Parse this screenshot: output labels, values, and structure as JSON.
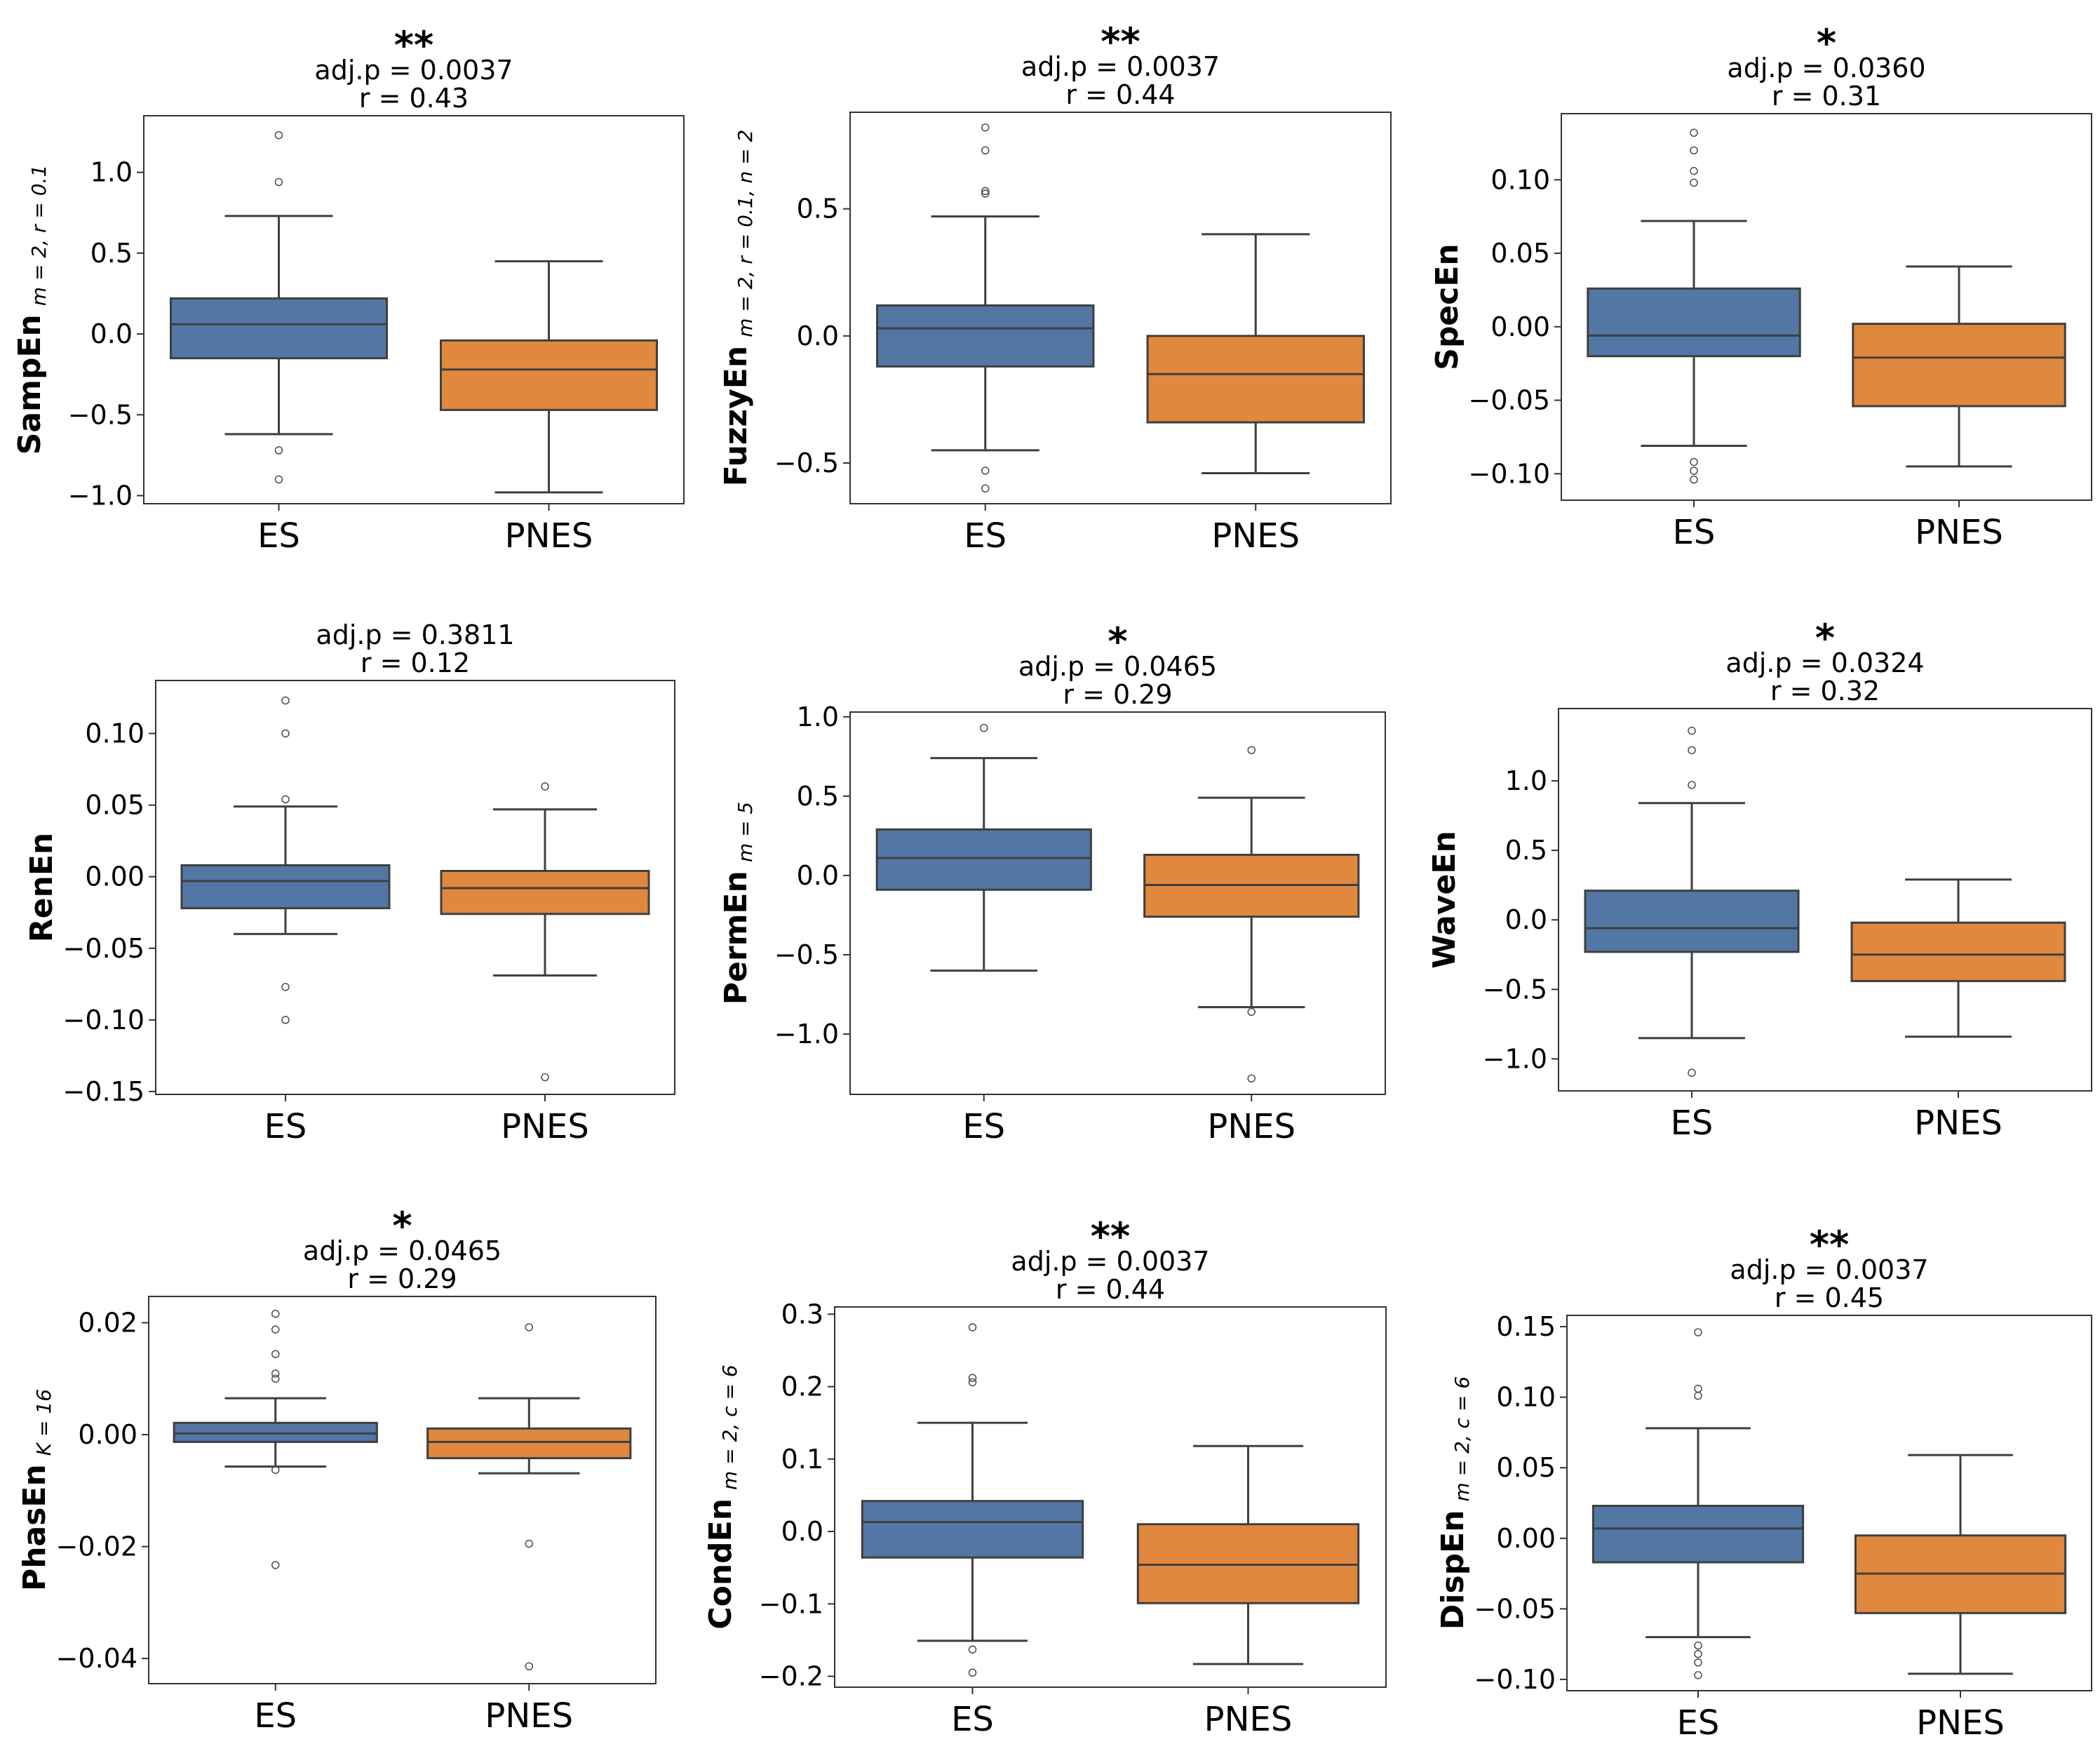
{
  "colors": {
    "ES": "#5277a4",
    "PNES": "#e0883d",
    "line": "#3f3f3f"
  },
  "chart_data": [
    {
      "type": "box",
      "ylabel": "SampEn",
      "ylabel_sub": "m = 2, r = 0.1",
      "significance": "**",
      "stat_p": "adj.p = 0.0037",
      "stat_r": "r = 0.43",
      "categories": [
        "ES",
        "PNES"
      ],
      "yticks": [
        "1.0",
        "0.5",
        "0.0",
        "−0.5",
        "−1.0"
      ],
      "ytick_values": [
        1.0,
        0.5,
        0.0,
        -0.5,
        -1.0
      ],
      "ylim": [
        -1.05,
        1.35
      ],
      "boxes": [
        {
          "q1": -0.15,
          "median": 0.06,
          "q3": 0.22,
          "whislo": -0.62,
          "whishi": 0.73,
          "fliers": [
            1.23,
            0.94,
            -0.72,
            -0.9
          ]
        },
        {
          "q1": -0.47,
          "median": -0.22,
          "q3": -0.04,
          "whislo": -0.98,
          "whishi": 0.45,
          "fliers": []
        }
      ]
    },
    {
      "type": "box",
      "ylabel": "FuzzyEn",
      "ylabel_sub": "m = 2, r = 0.1, n = 2",
      "significance": "**",
      "stat_p": "adj.p = 0.0037",
      "stat_r": "r = 0.44",
      "categories": [
        "ES",
        "PNES"
      ],
      "yticks": [
        "0.5",
        "0.0",
        "−0.5"
      ],
      "ytick_values": [
        0.5,
        0.0,
        -0.5
      ],
      "ylim": [
        -0.66,
        0.88
      ],
      "boxes": [
        {
          "q1": -0.12,
          "median": 0.03,
          "q3": 0.12,
          "whislo": -0.45,
          "whishi": 0.47,
          "fliers": [
            0.82,
            0.73,
            0.57,
            0.56,
            -0.53,
            -0.6
          ]
        },
        {
          "q1": -0.34,
          "median": -0.15,
          "q3": 0.0,
          "whislo": -0.54,
          "whishi": 0.4,
          "fliers": []
        }
      ]
    },
    {
      "type": "box",
      "ylabel": "SpecEn",
      "ylabel_sub": "",
      "significance": "*",
      "stat_p": "adj.p = 0.0360",
      "stat_r": "r = 0.31",
      "categories": [
        "ES",
        "PNES"
      ],
      "yticks": [
        "0.10",
        "0.05",
        "0.00",
        "−0.05",
        "−0.10"
      ],
      "ytick_values": [
        0.1,
        0.05,
        0.0,
        -0.05,
        -0.1
      ],
      "ylim": [
        -0.118,
        0.145
      ],
      "boxes": [
        {
          "q1": -0.02,
          "median": -0.006,
          "q3": 0.026,
          "whislo": -0.081,
          "whishi": 0.072,
          "fliers": [
            0.132,
            0.12,
            0.106,
            0.098,
            -0.092,
            -0.098,
            -0.104
          ]
        },
        {
          "q1": -0.054,
          "median": -0.021,
          "q3": 0.002,
          "whislo": -0.095,
          "whishi": 0.041,
          "fliers": []
        }
      ]
    },
    {
      "type": "box",
      "ylabel": "RenEn",
      "ylabel_sub": "",
      "significance": "",
      "stat_p": "adj.p = 0.3811",
      "stat_r": "r = 0.12",
      "categories": [
        "ES",
        "PNES"
      ],
      "yticks": [
        "0.10",
        "0.05",
        "0.00",
        "−0.05",
        "−0.10",
        "−0.15"
      ],
      "ytick_values": [
        0.1,
        0.05,
        0.0,
        -0.05,
        -0.1,
        -0.15
      ],
      "ylim": [
        -0.152,
        0.137
      ],
      "boxes": [
        {
          "q1": -0.022,
          "median": -0.003,
          "q3": 0.008,
          "whislo": -0.04,
          "whishi": 0.049,
          "fliers": [
            0.123,
            0.1,
            0.054,
            -0.077,
            -0.1
          ]
        },
        {
          "q1": -0.026,
          "median": -0.008,
          "q3": 0.004,
          "whislo": -0.069,
          "whishi": 0.047,
          "fliers": [
            0.063,
            -0.14
          ]
        }
      ]
    },
    {
      "type": "box",
      "ylabel": "PermEn",
      "ylabel_sub": "m = 5",
      "significance": "*",
      "stat_p": "adj.p = 0.0465",
      "stat_r": "r = 0.29",
      "categories": [
        "ES",
        "PNES"
      ],
      "yticks": [
        "1.0",
        "0.5",
        "0.0",
        "−0.5",
        "−1.0"
      ],
      "ytick_values": [
        1.0,
        0.5,
        0.0,
        -0.5,
        -1.0
      ],
      "ylim": [
        -1.38,
        1.03
      ],
      "boxes": [
        {
          "q1": -0.09,
          "median": 0.11,
          "q3": 0.29,
          "whislo": -0.6,
          "whishi": 0.74,
          "fliers": [
            0.93
          ]
        },
        {
          "q1": -0.26,
          "median": -0.06,
          "q3": 0.13,
          "whislo": -0.83,
          "whishi": 0.49,
          "fliers": [
            0.79,
            -0.86,
            -1.28
          ]
        }
      ]
    },
    {
      "type": "box",
      "ylabel": "WaveEn",
      "ylabel_sub": "",
      "significance": "*",
      "stat_p": "adj.p = 0.0324",
      "stat_r": "r = 0.32",
      "categories": [
        "ES",
        "PNES"
      ],
      "yticks": [
        "1.0",
        "0.5",
        "0.0",
        "−0.5",
        "−1.0"
      ],
      "ytick_values": [
        1.0,
        0.5,
        0.0,
        -0.5,
        -1.0
      ],
      "ylim": [
        -1.23,
        1.52
      ],
      "boxes": [
        {
          "q1": -0.23,
          "median": -0.06,
          "q3": 0.21,
          "whislo": -0.85,
          "whishi": 0.84,
          "fliers": [
            1.36,
            1.22,
            0.97,
            -1.1
          ]
        },
        {
          "q1": -0.44,
          "median": -0.25,
          "q3": -0.02,
          "whislo": -0.84,
          "whishi": 0.29,
          "fliers": []
        }
      ]
    },
    {
      "type": "box",
      "ylabel": "PhasEn",
      "ylabel_sub": "K = 16",
      "significance": "*",
      "stat_p": "adj.p = 0.0465",
      "stat_r": "r = 0.29",
      "categories": [
        "ES",
        "PNES"
      ],
      "yticks": [
        "0.02",
        "0.00",
        "−0.02",
        "−0.04"
      ],
      "ytick_values": [
        0.02,
        0.0,
        -0.02,
        -0.04
      ],
      "ylim": [
        -0.0445,
        0.0247
      ],
      "boxes": [
        {
          "q1": -0.0013,
          "median": 0.0002,
          "q3": 0.0021,
          "whislo": -0.0057,
          "whishi": 0.0065,
          "fliers": [
            0.0216,
            0.0188,
            0.0144,
            0.0109,
            0.01,
            -0.0063,
            -0.0233
          ]
        },
        {
          "q1": -0.0042,
          "median": -0.0013,
          "q3": 0.0011,
          "whislo": -0.0069,
          "whishi": 0.0065,
          "fliers": [
            0.0192,
            -0.0195,
            -0.0414
          ]
        }
      ]
    },
    {
      "type": "box",
      "ylabel": "CondEn",
      "ylabel_sub": "m = 2, c = 6",
      "significance": "**",
      "stat_p": "adj.p = 0.0037",
      "stat_r": "r = 0.44",
      "categories": [
        "ES",
        "PNES"
      ],
      "yticks": [
        "0.3",
        "0.2",
        "0.1",
        "0.0",
        "−0.1",
        "−0.2"
      ],
      "ytick_values": [
        0.3,
        0.2,
        0.1,
        0.0,
        -0.1,
        -0.2
      ],
      "ylim": [
        -0.215,
        0.31
      ],
      "boxes": [
        {
          "q1": -0.036,
          "median": 0.013,
          "q3": 0.042,
          "whislo": -0.151,
          "whishi": 0.15,
          "fliers": [
            0.282,
            0.212,
            0.206,
            -0.163,
            -0.195
          ]
        },
        {
          "q1": -0.099,
          "median": -0.046,
          "q3": 0.01,
          "whislo": -0.183,
          "whishi": 0.118,
          "fliers": []
        }
      ]
    },
    {
      "type": "box",
      "ylabel": "DispEn",
      "ylabel_sub": "m = 2, c = 6",
      "significance": "**",
      "stat_p": "adj.p = 0.0037",
      "stat_r": "r = 0.45",
      "categories": [
        "ES",
        "PNES"
      ],
      "yticks": [
        "0.15",
        "0.10",
        "0.05",
        "0.00",
        "−0.05",
        "−0.10"
      ],
      "ytick_values": [
        0.15,
        0.1,
        0.05,
        0.0,
        -0.05,
        -0.1
      ],
      "ylim": [
        -0.108,
        0.158
      ],
      "boxes": [
        {
          "q1": -0.017,
          "median": 0.007,
          "q3": 0.023,
          "whislo": -0.07,
          "whishi": 0.078,
          "fliers": [
            0.146,
            0.106,
            0.101,
            -0.076,
            -0.082,
            -0.088,
            -0.097
          ]
        },
        {
          "q1": -0.053,
          "median": -0.025,
          "q3": 0.002,
          "whislo": -0.096,
          "whishi": 0.059,
          "fliers": []
        }
      ]
    }
  ]
}
